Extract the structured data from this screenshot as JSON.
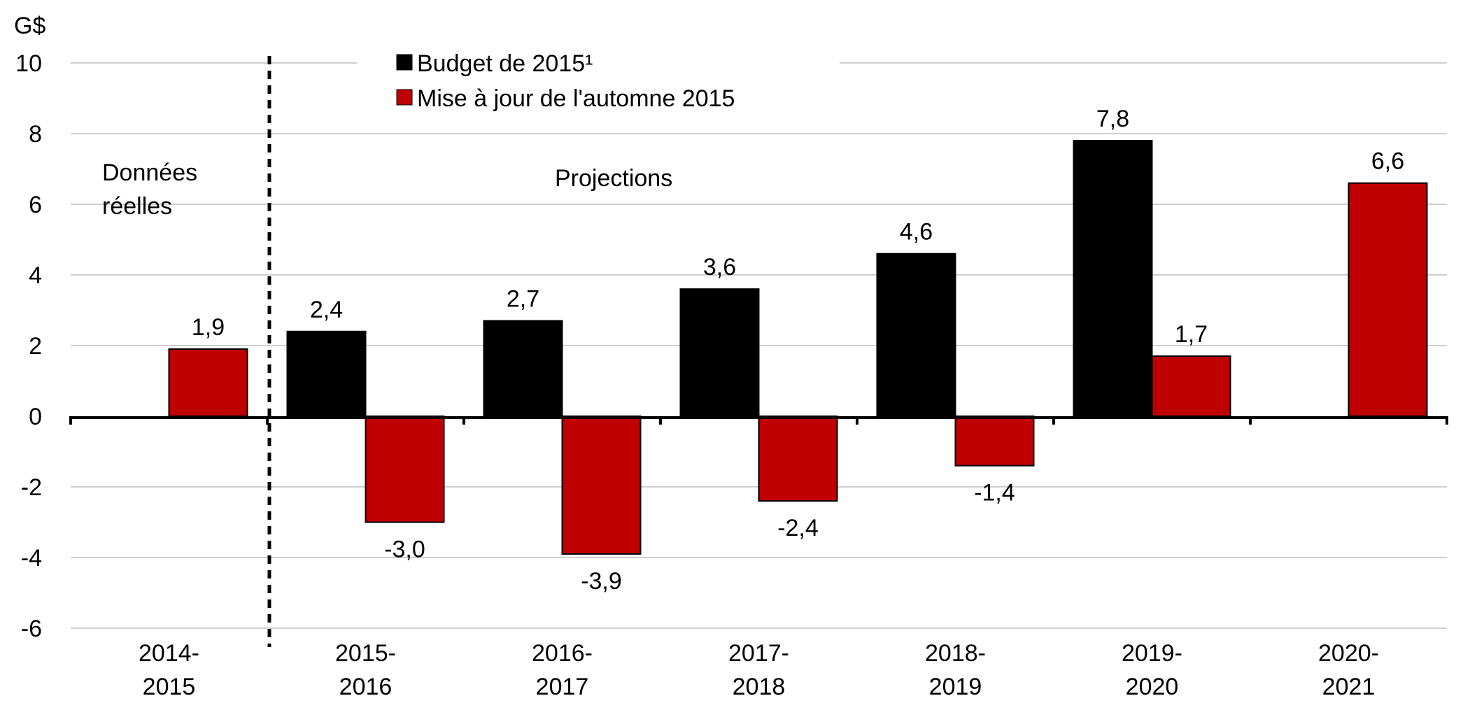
{
  "chart_data": {
    "type": "bar",
    "unit_label": "G$",
    "categories": [
      [
        "2014-",
        "2015"
      ],
      [
        "2015-",
        "2016"
      ],
      [
        "2016-",
        "2017"
      ],
      [
        "2017-",
        "2018"
      ],
      [
        "2018-",
        "2019"
      ],
      [
        "2019-",
        "2020"
      ],
      [
        "2020-",
        "2021"
      ]
    ],
    "series": [
      {
        "name": "Budget de 2015¹",
        "color": "#000000",
        "values": [
          null,
          2.4,
          2.7,
          3.6,
          4.6,
          7.8,
          null
        ],
        "labels": [
          null,
          "2,4",
          "2,7",
          "3,6",
          "4,6",
          "7,8",
          null
        ]
      },
      {
        "name": "Mise à jour de l'automne 2015",
        "color": "#c00000",
        "values": [
          1.9,
          -3.0,
          -3.9,
          -2.4,
          -1.4,
          1.7,
          6.6
        ],
        "labels": [
          "1,9",
          "-3,0",
          "-3,9",
          "-2,4",
          "-1,4",
          "1,7",
          "6,6"
        ]
      }
    ],
    "yticks": [
      "10",
      "8",
      "6",
      "4",
      "2",
      "0",
      "-2",
      "-4",
      "-6"
    ],
    "ylim": [
      -6,
      10
    ],
    "grid": true,
    "legend_position": "top-center",
    "annotations": {
      "actual_left": "Données",
      "actual_right": "réelles",
      "projections": "Projections"
    }
  }
}
